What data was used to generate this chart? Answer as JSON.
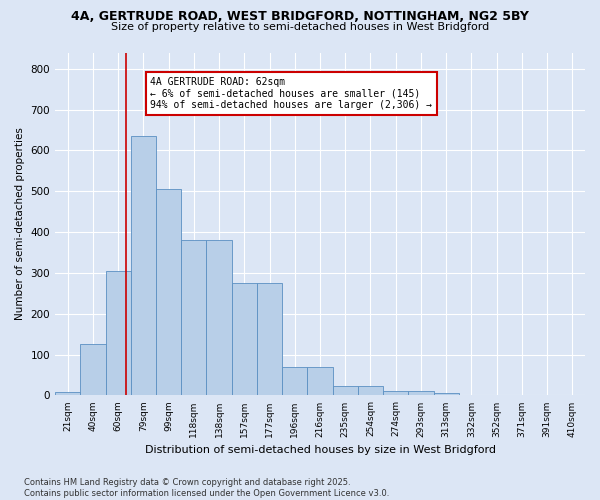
{
  "title_line1": "4A, GERTRUDE ROAD, WEST BRIDGFORD, NOTTINGHAM, NG2 5BY",
  "title_line2": "Size of property relative to semi-detached houses in West Bridgford",
  "xlabel": "Distribution of semi-detached houses by size in West Bridgford",
  "ylabel": "Number of semi-detached properties",
  "categories": [
    "21sqm",
    "40sqm",
    "60sqm",
    "79sqm",
    "99sqm",
    "118sqm",
    "138sqm",
    "157sqm",
    "177sqm",
    "196sqm",
    "216sqm",
    "235sqm",
    "254sqm",
    "274sqm",
    "293sqm",
    "313sqm",
    "332sqm",
    "352sqm",
    "371sqm",
    "391sqm",
    "410sqm"
  ],
  "values": [
    8,
    125,
    305,
    635,
    505,
    380,
    380,
    275,
    275,
    70,
    70,
    22,
    22,
    10,
    10,
    5,
    2,
    2,
    1,
    1,
    0
  ],
  "bar_color": "#b8cfe8",
  "bar_edge_color": "#5a8fc2",
  "background_color": "#dce6f5",
  "grid_color": "#ffffff",
  "vline_color": "#cc0000",
  "vline_x": 2.3,
  "annotation_title": "4A GERTRUDE ROAD: 62sqm",
  "annotation_line1": "← 6% of semi-detached houses are smaller (145)",
  "annotation_line2": "94% of semi-detached houses are larger (2,306) →",
  "annotation_box_color": "#cc0000",
  "footnote_line1": "Contains HM Land Registry data © Crown copyright and database right 2025.",
  "footnote_line2": "Contains public sector information licensed under the Open Government Licence v3.0.",
  "ylim": [
    0,
    840
  ],
  "yticks": [
    0,
    100,
    200,
    300,
    400,
    500,
    600,
    700,
    800
  ]
}
